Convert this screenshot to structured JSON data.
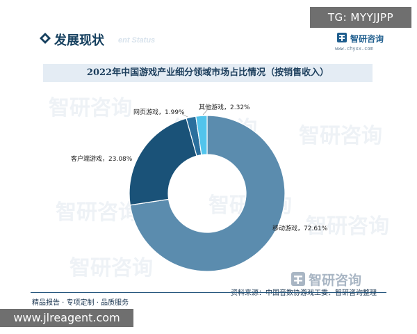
{
  "badge_top": "TG: MYYJJPP",
  "section": {
    "title": "发展现状",
    "subtitle": "ent Status"
  },
  "logo": {
    "name": "智研咨询",
    "url": "www.chyxx.com"
  },
  "watermark": "智研咨询",
  "footer": {
    "left": "精品报告 · 专项定制 · 品质服务",
    "source": "资料来源：中国音数协游戏工委、智研咨询整理",
    "logo": "智研咨询"
  },
  "badge_bottom": "www.jlreagent.com",
  "colors": {
    "mobile": "#5b8cae",
    "client": "#1a5278",
    "web": "#2a6f9d",
    "other": "#52c4ec",
    "accent": "#16405f"
  },
  "chart_data": {
    "type": "pie",
    "donut": true,
    "title": "2022年中国游戏产业细分领域市场占比情况（按销售收入）",
    "slices": [
      {
        "label": "移动游戏",
        "value": 72.61,
        "display": "移动游戏，72.61%",
        "color": "#5b8cae"
      },
      {
        "label": "客户端游戏",
        "value": 23.08,
        "display": "客户端游戏，23.08%",
        "color": "#1a5278"
      },
      {
        "label": "网页游戏",
        "value": 1.99,
        "display": "网页游戏，1.99%",
        "color": "#2a6f9d"
      },
      {
        "label": "其他游戏",
        "value": 2.32,
        "display": "其他游戏，2.32%",
        "color": "#52c4ec"
      }
    ]
  }
}
